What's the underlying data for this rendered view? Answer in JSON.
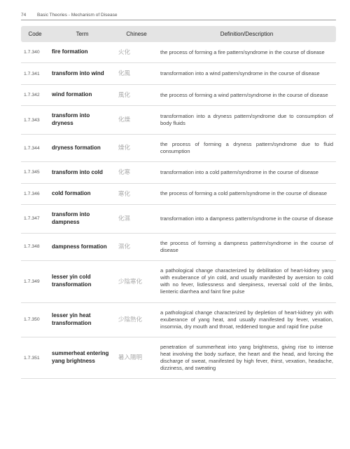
{
  "header": {
    "page_number": "74",
    "section": "Basic Theories - Mechanism of Disease"
  },
  "table": {
    "columns": [
      "Code",
      "Term",
      "Chinese",
      "Definition/Description"
    ],
    "rows": [
      {
        "code": "1.7.340",
        "term": "fire formation",
        "chinese": "火化",
        "def": "the process of forming a fire pattern/syndrome in the course of disease"
      },
      {
        "code": "1.7.341",
        "term": "transform into wind",
        "chinese": "化風",
        "def": "transformation into a wind pattern/syndrome in the course of disease"
      },
      {
        "code": "1.7.342",
        "term": "wind formation",
        "chinese": "風化",
        "def": "the process of forming a wind pattern/syndrome in the course of disease"
      },
      {
        "code": "1.7.343",
        "term": "transform into dryness",
        "chinese": "化燥",
        "def": "transformation into a dryness pattern/syndrome due to consumption of body fluids"
      },
      {
        "code": "1.7.344",
        "term": "dryness formation",
        "chinese": "燥化",
        "def": "the process of forming a dryness pattern/syndrome due to fluid consumption"
      },
      {
        "code": "1.7.345",
        "term": "transform into cold",
        "chinese": "化寒",
        "def": "transformation into a cold pattern/syndrome in the course of disease"
      },
      {
        "code": "1.7.346",
        "term": "cold formation",
        "chinese": "寒化",
        "def": "the process of forming a cold pattern/syndrome in the course of disease"
      },
      {
        "code": "1.7.347",
        "term": "transform into dampness",
        "chinese": "化濕",
        "def": "transformation into a dampness pattern/syndrome in the course of disease"
      },
      {
        "code": "1.7.348",
        "term": "dampness formation",
        "chinese": "濕化",
        "def": "the process of forming a dampness pattern/syndrome in the course of disease"
      },
      {
        "code": "1.7.349",
        "term": "lesser yin cold transformation",
        "chinese": "少陰寒化",
        "def": "a pathological change characterized by debilitation of heart-kidney yang with exuberance of yin cold, and usually manifested by aversion to cold with no fever, listlessness and sleepiness, reversal cold of the limbs, lienteric diarrhea and faint fine pulse"
      },
      {
        "code": "1.7.350",
        "term": "lesser yin heat transformation",
        "chinese": "少陰熱化",
        "def": "a pathological change characterized by depletion of heart-kidney yin with exuberance of yang heat, and usually manifested by fever, vexation, insomnia, dry mouth and throat, reddened tongue and rapid fine pulse"
      },
      {
        "code": "1.7.351",
        "term": "summerheat entering yang brightness",
        "chinese": "暑入陽明",
        "def": "penetration of summerheat into yang brightness, giving rise to intense heat involving the body surface, the heart and the head, and forcing the discharge of sweat, manifested by high fever, thirst, vexation, headache, dizziness, and sweating"
      }
    ]
  },
  "colors": {
    "header_bg": "#e4e4e4",
    "border": "#dddddd",
    "text": "#3a3a3a",
    "chinese": "#aaaaaa"
  }
}
